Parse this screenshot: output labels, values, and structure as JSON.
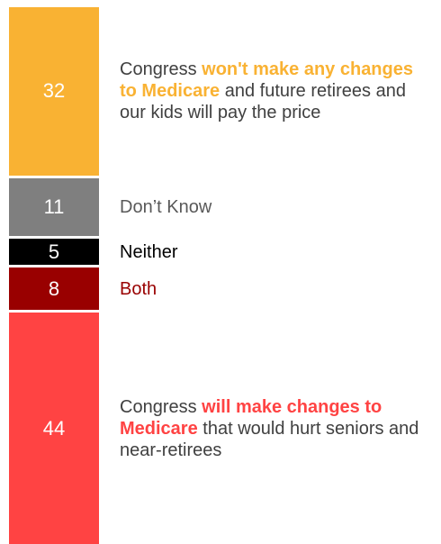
{
  "chart_data": {
    "type": "stacked-bar",
    "ylim": [
      0,
      100
    ],
    "series": [
      {
        "name": [
          "Congress ",
          "won't make any changes to Medicare",
          " and future retirees and our kids will pay the price"
        ],
        "emphasis": 1,
        "color": "#f9b233",
        "label_color": "#404040",
        "values": [
          32
        ]
      },
      {
        "name": [
          "Don’t Know"
        ],
        "color": "#7f7f7f",
        "label_color": "#595959",
        "values": [
          11
        ]
      },
      {
        "name": [
          "Neither"
        ],
        "color": "#000000",
        "label_color": "#000000",
        "values": [
          5
        ]
      },
      {
        "name": [
          "Both"
        ],
        "color": "#990000",
        "label_color": "#990000",
        "values": [
          8
        ]
      },
      {
        "name": [
          "Congress ",
          "will make changes to Medicare",
          " that would hurt seniors and near-retirees"
        ],
        "emphasis": 1,
        "color": "#ff4343",
        "label_color": "#404040",
        "values": [
          44
        ]
      }
    ]
  }
}
